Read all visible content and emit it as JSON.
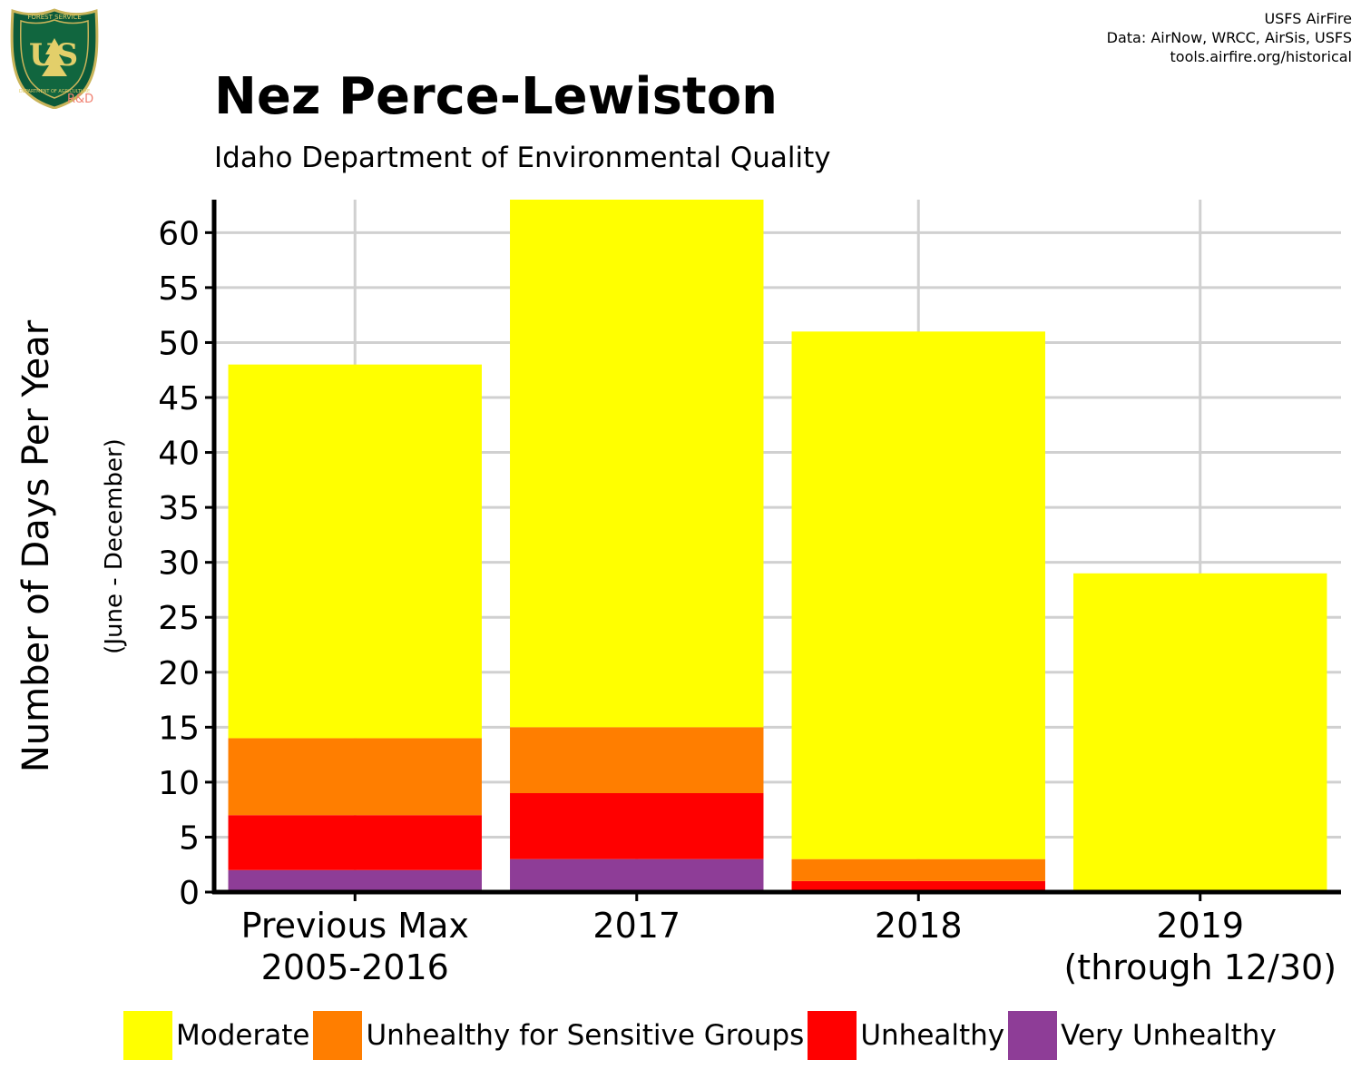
{
  "header": {
    "title": "Nez Perce-Lewiston",
    "subtitle": "Idaho Department of Environmental Quality",
    "credit_lines": [
      "USFS AirFire",
      "Data: AirNow, WRCC, AirSis, USFS",
      "tools.airfire.org/historical"
    ]
  },
  "logo": {
    "text": "US",
    "ring_top": "FOREST SERVICE",
    "ring_bottom": "DEPARTMENT OF AGRICULTURE",
    "badge": "R&D"
  },
  "chart_data": {
    "type": "bar",
    "stacked": true,
    "categories": [
      [
        "Previous Max",
        "2005-2016"
      ],
      [
        "2017"
      ],
      [
        "2018"
      ],
      [
        "2019",
        "(through 12/30)"
      ]
    ],
    "series": [
      {
        "name": "Very Unhealthy",
        "color": "#8e3d97",
        "values": [
          2,
          3,
          0,
          0
        ]
      },
      {
        "name": "Unhealthy",
        "color": "#ff0000",
        "values": [
          5,
          6,
          1,
          0
        ]
      },
      {
        "name": "Unhealthy for Sensitive Groups",
        "color": "#ff7e00",
        "values": [
          7,
          6,
          2,
          0
        ]
      },
      {
        "name": "Moderate",
        "color": "#ffff00",
        "values": [
          34,
          48,
          48,
          29
        ]
      }
    ],
    "ylabel": "Number of Days Per Year",
    "ylabel_sub": "(June - December)",
    "ylim": [
      0,
      63
    ],
    "yticks": [
      0,
      5,
      10,
      15,
      20,
      25,
      30,
      35,
      40,
      45,
      50,
      55,
      60
    ],
    "grid": true,
    "legend_position": "bottom"
  },
  "legend_order": [
    "Moderate",
    "Unhealthy for Sensitive Groups",
    "Unhealthy",
    "Very Unhealthy"
  ]
}
